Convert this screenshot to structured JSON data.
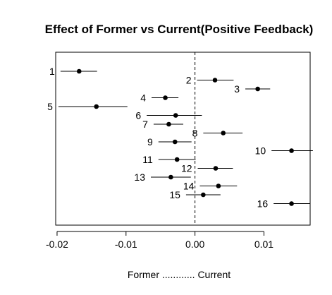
{
  "chart_data": {
    "type": "scatter",
    "title": "Effect of Former vs Current(Positive Feedback)",
    "xlabel": "Former ............ Current",
    "ylabel": "",
    "xlim": [
      -0.0202,
      0.0167
    ],
    "x_ticks": [
      -0.02,
      -0.01,
      0.0,
      0.01
    ],
    "x_tick_labels": [
      "-0.02",
      "-0.01",
      "0.00",
      "0.01"
    ],
    "reference_line": 0.0,
    "grid": false,
    "legend": "none",
    "points": [
      {
        "label": "1",
        "x": -0.0168,
        "low": -0.0195,
        "high": -0.0142,
        "label_side": "left"
      },
      {
        "label": "2",
        "x": 0.0029,
        "low": 0.0003,
        "high": 0.0056,
        "label_side": "left"
      },
      {
        "label": "3",
        "x": 0.0091,
        "low": 0.0073,
        "high": 0.0109,
        "label_side": "left"
      },
      {
        "label": "4",
        "x": -0.0043,
        "low": -0.0063,
        "high": -0.0024,
        "label_side": "left"
      },
      {
        "label": "5",
        "x": -0.0143,
        "low": -0.0198,
        "high": -0.0098,
        "label_side": "left"
      },
      {
        "label": "6",
        "x": -0.0028,
        "low": -0.007,
        "high": 0.001,
        "label_side": "left"
      },
      {
        "label": "7",
        "x": -0.0038,
        "low": -0.006,
        "high": -0.0017,
        "label_side": "left"
      },
      {
        "label": "8",
        "x": 0.0041,
        "low": 0.0012,
        "high": 0.0069,
        "label_side": "left"
      },
      {
        "label": "9",
        "x": -0.0029,
        "low": -0.0053,
        "high": -0.0005,
        "label_side": "left"
      },
      {
        "label": "10",
        "x": 0.014,
        "low": 0.0111,
        "high": 0.0171,
        "label_side": "left"
      },
      {
        "label": "11",
        "x": -0.0026,
        "low": -0.0053,
        "high": 0.0001,
        "label_side": "left"
      },
      {
        "label": "12",
        "x": 0.003,
        "low": 0.0004,
        "high": 0.0055,
        "label_side": "left"
      },
      {
        "label": "13",
        "x": -0.0035,
        "low": -0.0064,
        "high": -0.0006,
        "label_side": "left"
      },
      {
        "label": "14",
        "x": 0.0034,
        "low": 0.0007,
        "high": 0.0061,
        "label_side": "left"
      },
      {
        "label": "15",
        "x": 0.0012,
        "low": -0.0013,
        "high": 0.0037,
        "label_side": "left"
      },
      {
        "label": "16",
        "x": 0.014,
        "low": 0.0114,
        "high": 0.0167,
        "label_side": "left"
      }
    ]
  }
}
